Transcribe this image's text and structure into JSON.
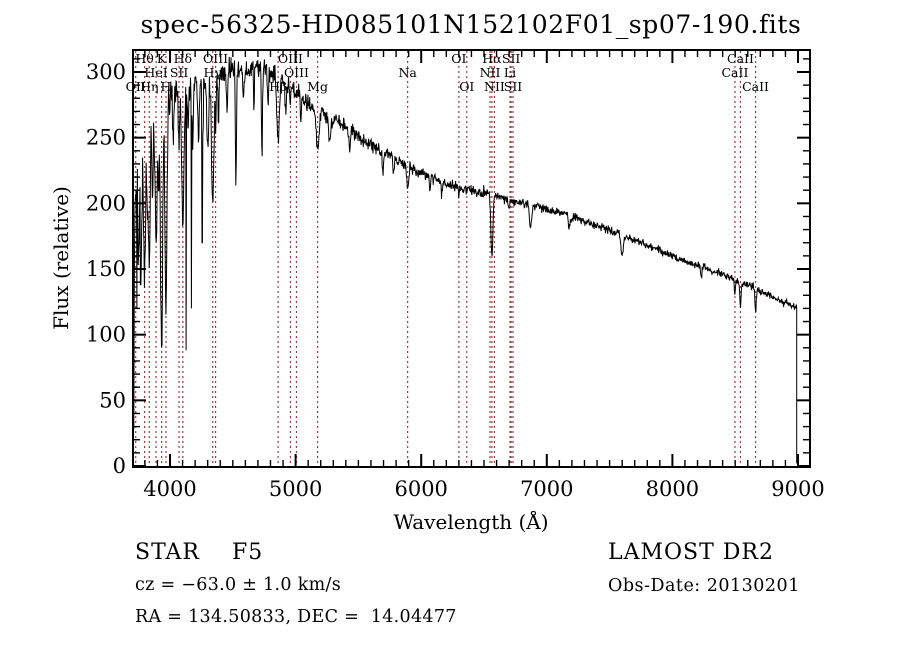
{
  "title": "spec-56325-HD085101N152102F01_sp07-190.fits",
  "annotations": {
    "class_label": "STAR    F5",
    "cz": "cz = −63.0 ± 1.0 km/s",
    "radec": "RA = 134.50833, DEC =  14.04477",
    "survey": "LAMOST DR2",
    "obs_date": "Obs-Date: 20130201"
  },
  "chart_data": {
    "type": "line",
    "title": "spec-56325-HD085101N152102F01_sp07-190.fits",
    "xlabel": "Wavelength (Å)",
    "ylabel": "Flux (relative)",
    "xlim": [
      3705,
      9094
    ],
    "ylim": [
      0,
      317
    ],
    "xticks": [
      4000,
      5000,
      6000,
      7000,
      8000,
      9000
    ],
    "yticks": [
      0,
      50,
      100,
      150,
      200,
      250,
      300
    ],
    "xtick_minor_step": 100,
    "ytick_minor_step": 10,
    "grid": false,
    "line_color": "#000000",
    "marker_color": "#9a3c3c",
    "background": "#ffffff",
    "cutoff_wavelength": 8990,
    "spectral_lines": [
      {
        "label": "Hθ",
        "wl": 3798,
        "row": 1
      },
      {
        "label": "K",
        "wl": 3933,
        "row": 1
      },
      {
        "label": "Hδ",
        "wl": 4102,
        "row": 1
      },
      {
        "label": "OIII",
        "wl": 4363,
        "row": 1
      },
      {
        "label": "OIII",
        "wl": 4959,
        "row": 1
      },
      {
        "label": "OI",
        "wl": 6300,
        "row": 1
      },
      {
        "label": "Hα",
        "wl": 6563,
        "row": 1
      },
      {
        "label": "SII",
        "wl": 6716,
        "row": 1
      },
      {
        "label": "CaII",
        "wl": 8542,
        "row": 1
      },
      {
        "label": "HeI",
        "wl": 3889,
        "row": 2
      },
      {
        "label": "SII",
        "wl": 4072,
        "row": 2
      },
      {
        "label": "Hγ",
        "wl": 4340,
        "row": 2
      },
      {
        "label": "OIII",
        "wl": 5007,
        "row": 2
      },
      {
        "label": "Na",
        "wl": 5892,
        "row": 2
      },
      {
        "label": "NII",
        "wl": 6548,
        "row": 2
      },
      {
        "label": "Li",
        "wl": 6707,
        "row": 2
      },
      {
        "label": "CaII",
        "wl": 8498,
        "row": 2
      },
      {
        "label": "OII",
        "wl": 3727,
        "row": 3
      },
      {
        "label": "Hη",
        "wl": 3835,
        "row": 3
      },
      {
        "label": "H",
        "wl": 3968,
        "row": 3
      },
      {
        "label": "Hβ",
        "wl": 4861,
        "row": 3
      },
      {
        "label": "Mg",
        "wl": 5175,
        "row": 3
      },
      {
        "label": "OI",
        "wl": 6363,
        "row": 3
      },
      {
        "label": "NII",
        "wl": 6583,
        "row": 3
      },
      {
        "label": "SII",
        "wl": 6731,
        "row": 3
      },
      {
        "label": "CaII",
        "wl": 8662,
        "row": 3
      }
    ],
    "continuum_points": [
      [
        3705,
        60
      ],
      [
        3712,
        150
      ],
      [
        3725,
        225
      ],
      [
        3745,
        248
      ],
      [
        3775,
        260
      ],
      [
        3810,
        267
      ],
      [
        3860,
        272
      ],
      [
        3920,
        277
      ],
      [
        3980,
        281
      ],
      [
        4050,
        285
      ],
      [
        4150,
        289
      ],
      [
        4250,
        293
      ],
      [
        4350,
        296
      ],
      [
        4450,
        299
      ],
      [
        4550,
        302
      ],
      [
        4650,
        304
      ],
      [
        4750,
        303
      ],
      [
        4850,
        298
      ],
      [
        4950,
        290
      ],
      [
        5050,
        281
      ],
      [
        5150,
        273
      ],
      [
        5250,
        266
      ],
      [
        5350,
        261
      ],
      [
        5450,
        255
      ],
      [
        5550,
        248
      ],
      [
        5650,
        242
      ],
      [
        5750,
        236
      ],
      [
        5850,
        230
      ],
      [
        5950,
        225
      ],
      [
        6070,
        220
      ],
      [
        6200,
        215
      ],
      [
        6350,
        211
      ],
      [
        6500,
        208
      ],
      [
        6650,
        204
      ],
      [
        6800,
        200
      ],
      [
        6950,
        197
      ],
      [
        7100,
        193
      ],
      [
        7250,
        188
      ],
      [
        7400,
        183
      ],
      [
        7550,
        178
      ],
      [
        7700,
        172
      ],
      [
        7850,
        166
      ],
      [
        8000,
        160
      ],
      [
        8150,
        154
      ],
      [
        8300,
        149
      ],
      [
        8450,
        144
      ],
      [
        8600,
        138
      ],
      [
        8750,
        131
      ],
      [
        8900,
        124
      ],
      [
        8990,
        121
      ]
    ],
    "absorption_features": [
      {
        "wl": 3727,
        "depth": 25,
        "width": 5
      },
      {
        "wl": 3750,
        "depth": 90,
        "width": 6
      },
      {
        "wl": 3771,
        "depth": 100,
        "width": 6
      },
      {
        "wl": 3798,
        "depth": 125,
        "width": 7
      },
      {
        "wl": 3820,
        "depth": 60,
        "width": 5
      },
      {
        "wl": 3835,
        "depth": 115,
        "width": 7
      },
      {
        "wl": 3860,
        "depth": 70,
        "width": 5
      },
      {
        "wl": 3889,
        "depth": 105,
        "width": 8
      },
      {
        "wl": 3910,
        "depth": 60,
        "width": 5
      },
      {
        "wl": 3933,
        "depth": 200,
        "width": 8
      },
      {
        "wl": 3968,
        "depth": 160,
        "width": 8
      },
      {
        "wl": 4026,
        "depth": 35,
        "width": 5
      },
      {
        "wl": 4072,
        "depth": 40,
        "width": 5
      },
      {
        "wl": 4102,
        "depth": 100,
        "width": 9
      },
      {
        "wl": 4144,
        "depth": 35,
        "width": 5
      },
      {
        "wl": 4180,
        "depth": 45,
        "width": 5
      },
      {
        "wl": 4227,
        "depth": 45,
        "width": 5
      },
      {
        "wl": 4260,
        "depth": 40,
        "width": 5
      },
      {
        "wl": 4300,
        "depth": 50,
        "width": 7
      },
      {
        "wl": 4340,
        "depth": 100,
        "width": 9
      },
      {
        "wl": 4363,
        "depth": 35,
        "width": 4
      },
      {
        "wl": 4385,
        "depth": 40,
        "width": 4
      },
      {
        "wl": 4455,
        "depth": 30,
        "width": 4
      },
      {
        "wl": 4525,
        "depth": 85,
        "width": 4
      },
      {
        "wl": 4585,
        "depth": 25,
        "width": 4
      },
      {
        "wl": 4668,
        "depth": 30,
        "width": 4
      },
      {
        "wl": 4732,
        "depth": 70,
        "width": 4
      },
      {
        "wl": 4780,
        "depth": 25,
        "width": 4
      },
      {
        "wl": 4861,
        "depth": 52,
        "width": 9
      },
      {
        "wl": 4920,
        "depth": 22,
        "width": 5
      },
      {
        "wl": 4957,
        "depth": 15,
        "width": 4
      },
      {
        "wl": 5041,
        "depth": 18,
        "width": 4
      },
      {
        "wl": 5175,
        "depth": 30,
        "width": 11
      },
      {
        "wl": 5270,
        "depth": 18,
        "width": 7
      },
      {
        "wl": 5430,
        "depth": 15,
        "width": 5
      },
      {
        "wl": 5695,
        "depth": 18,
        "width": 5
      },
      {
        "wl": 5780,
        "depth": 12,
        "width": 4
      },
      {
        "wl": 5892,
        "depth": 20,
        "width": 7
      },
      {
        "wl": 6070,
        "depth": 10,
        "width": 4
      },
      {
        "wl": 6163,
        "depth": 10,
        "width": 4
      },
      {
        "wl": 6300,
        "depth": 8,
        "width": 4
      },
      {
        "wl": 6563,
        "depth": 48,
        "width": 8
      },
      {
        "wl": 6700,
        "depth": 8,
        "width": 5
      },
      {
        "wl": 6870,
        "depth": 16,
        "width": 9
      },
      {
        "wl": 7180,
        "depth": 10,
        "width": 7
      },
      {
        "wl": 7600,
        "depth": 16,
        "width": 9
      },
      {
        "wl": 8230,
        "depth": 9,
        "width": 5
      },
      {
        "wl": 8498,
        "depth": 9,
        "width": 5
      },
      {
        "wl": 8542,
        "depth": 20,
        "width": 5
      },
      {
        "wl": 8662,
        "depth": 18,
        "width": 5
      }
    ],
    "spikes": [
      {
        "wl": 3712,
        "flux": 28
      },
      {
        "wl": 3736,
        "flux": 120
      },
      {
        "wl": 3766,
        "flux": 138
      },
      {
        "wl": 4128,
        "flux": 88
      },
      {
        "wl": 4170,
        "flux": 120
      },
      {
        "wl": 4256,
        "flux": 170
      }
    ],
    "noise_profile": [
      [
        3705,
        42
      ],
      [
        3760,
        26
      ],
      [
        3820,
        18
      ],
      [
        3900,
        15
      ],
      [
        4000,
        13
      ],
      [
        4200,
        11
      ],
      [
        4500,
        9
      ],
      [
        4800,
        7.5
      ],
      [
        5100,
        6.3
      ],
      [
        5400,
        5.5
      ],
      [
        5800,
        4.8
      ],
      [
        6200,
        4.2
      ],
      [
        6700,
        3.8
      ],
      [
        7300,
        3.3
      ],
      [
        8000,
        3.0
      ],
      [
        9000,
        2.8
      ]
    ]
  }
}
